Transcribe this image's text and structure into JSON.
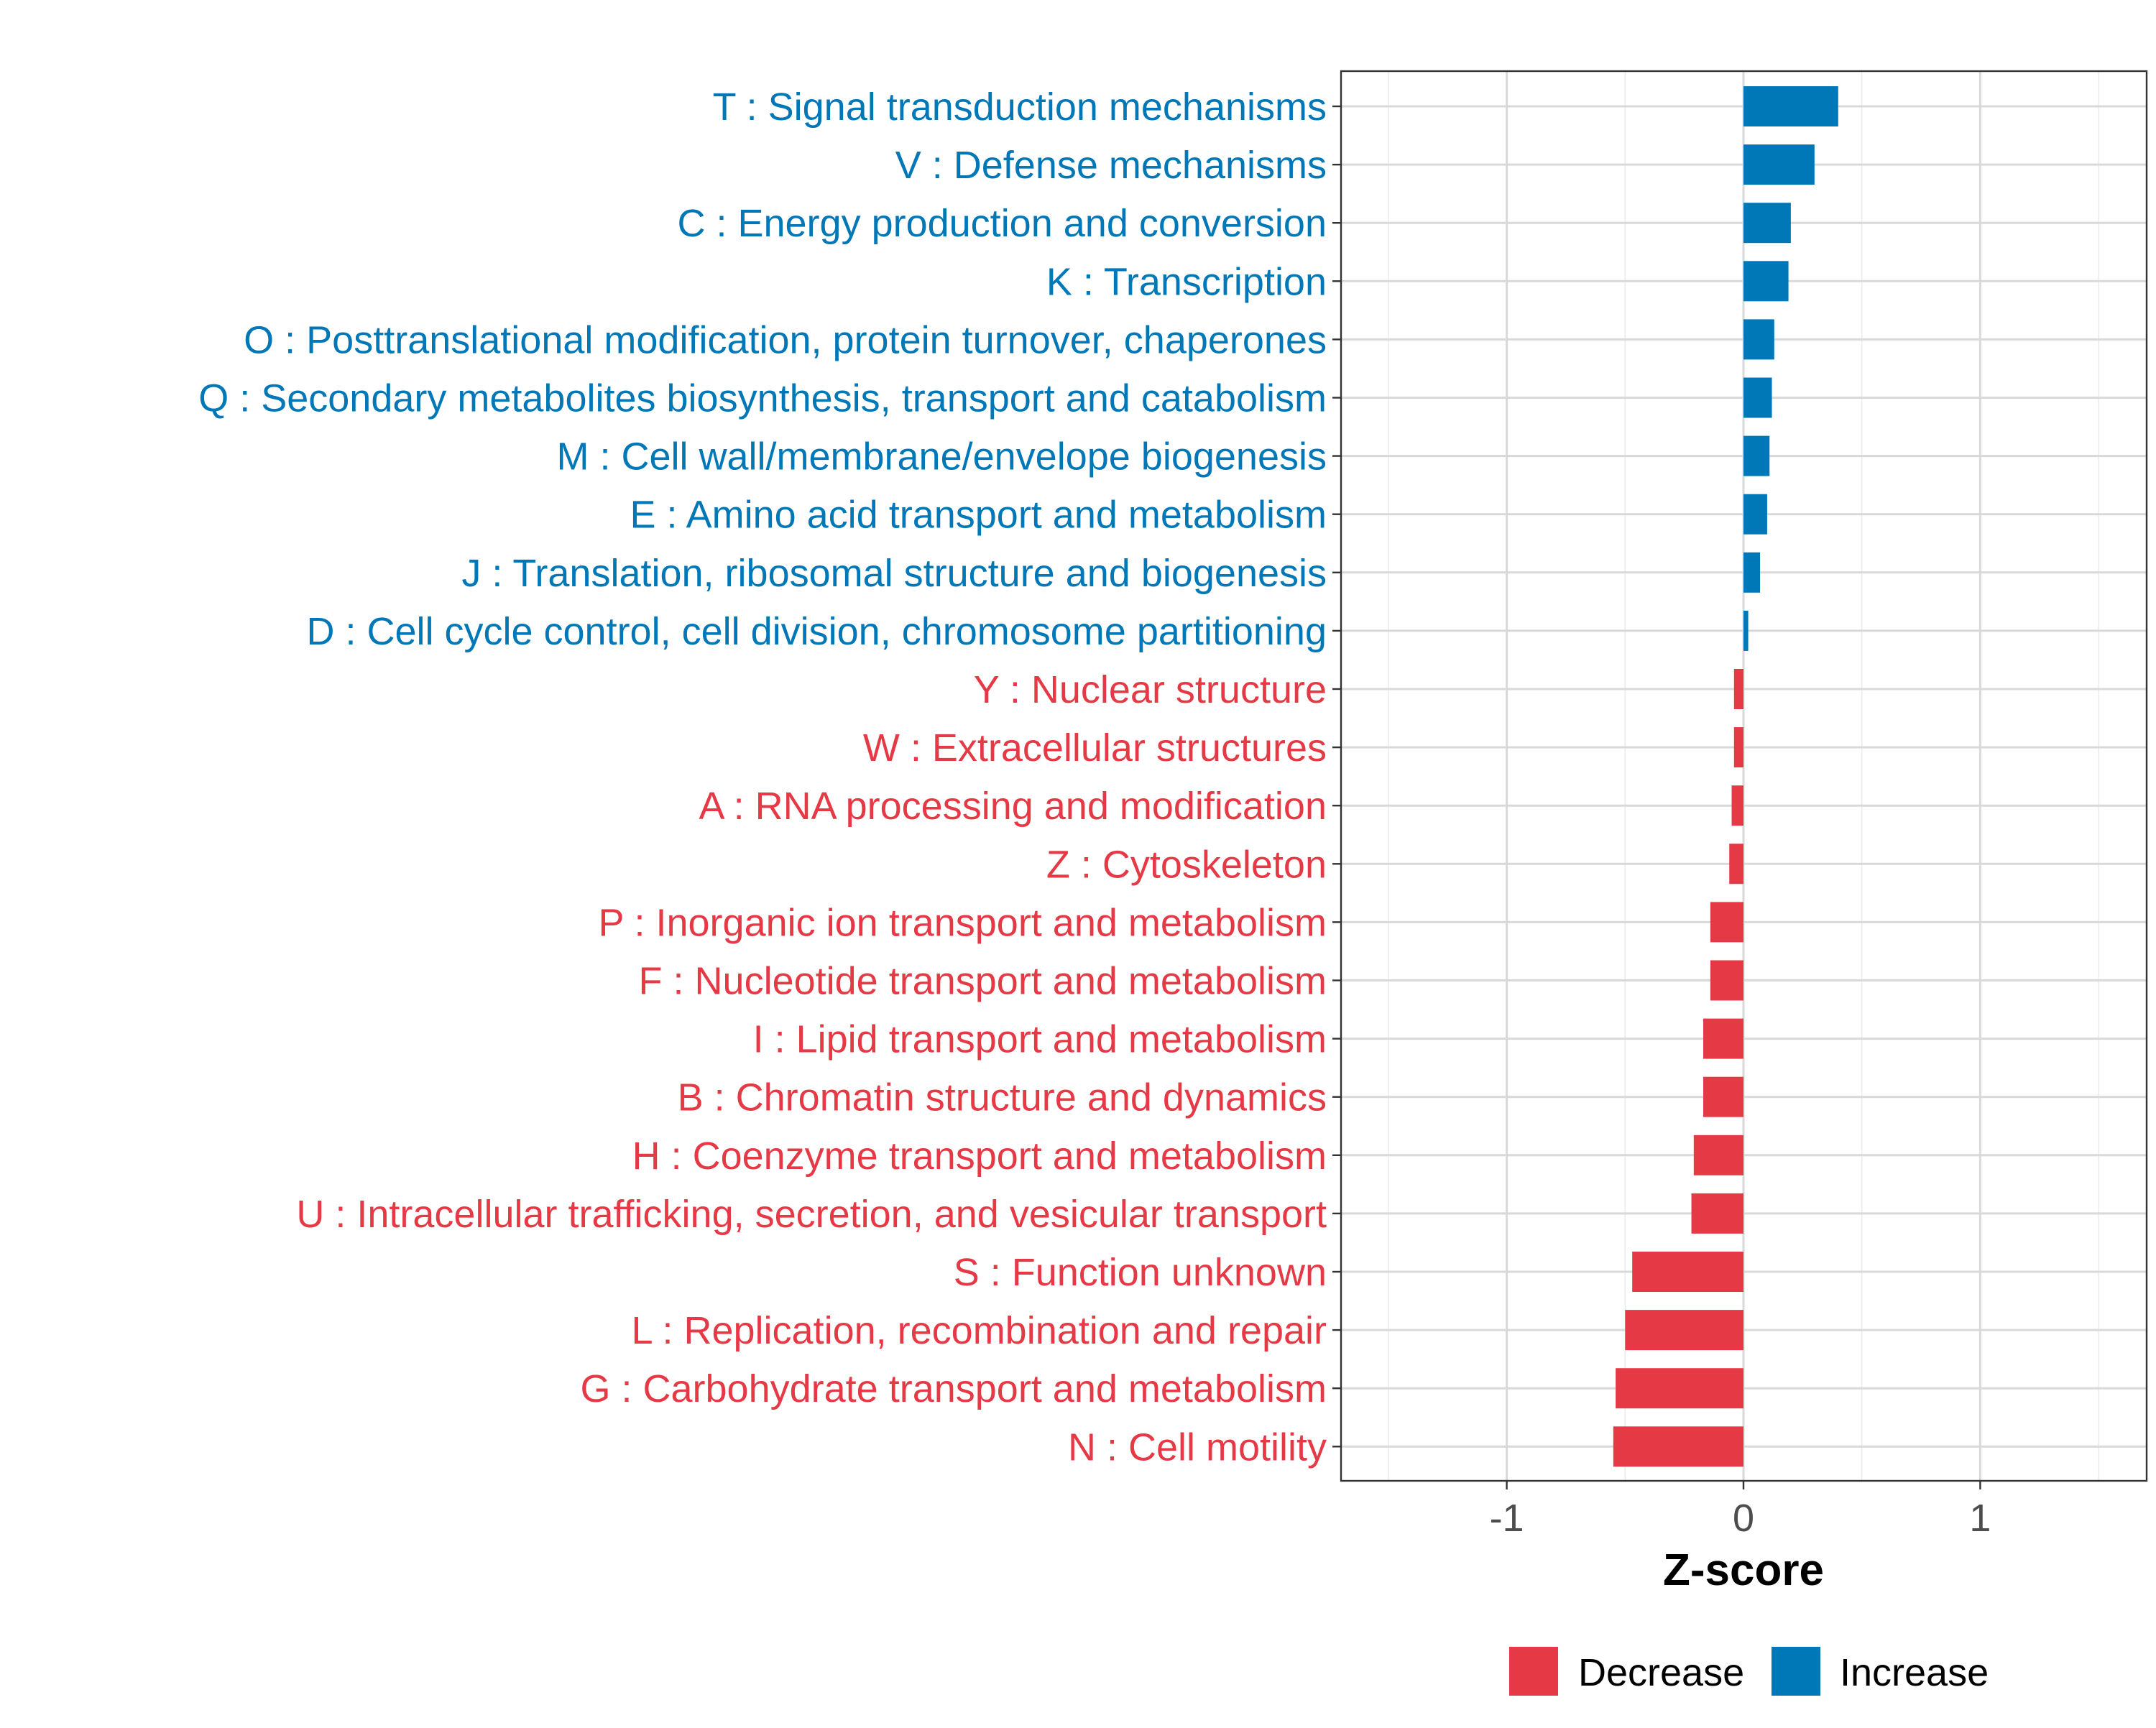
{
  "chart_data": {
    "type": "bar",
    "orientation": "horizontal",
    "title": "",
    "xlabel": "Z-score",
    "ylabel": "",
    "xlim": [
      -1.7,
      1.7
    ],
    "xticks": [
      -1,
      0,
      1
    ],
    "xtick_labels": [
      "-1",
      "0",
      "1"
    ],
    "grid": true,
    "legend_position": "bottom",
    "categories": [
      "T : Signal transduction mechanisms",
      "V : Defense mechanisms",
      "C : Energy production and conversion",
      "K : Transcription",
      "O : Posttranslational modification, protein turnover, chaperones",
      "Q : Secondary metabolites biosynthesis, transport and catabolism",
      "M : Cell wall/membrane/envelope biogenesis",
      "E : Amino acid transport and metabolism",
      "J : Translation, ribosomal structure and biogenesis",
      "D : Cell cycle control, cell division, chromosome partitioning",
      "Y : Nuclear structure",
      "W : Extracellular structures",
      "A : RNA processing and modification",
      "Z : Cytoskeleton",
      "P : Inorganic ion transport and metabolism",
      "F : Nucleotide transport and metabolism",
      "I : Lipid transport and metabolism",
      "B : Chromatin structure and dynamics",
      "H : Coenzyme transport and metabolism",
      "U : Intracellular trafficking, secretion, and vesicular transport",
      "S : Function unknown",
      "L : Replication, recombination and repair",
      "G : Carbohydrate transport and metabolism",
      "N : Cell motility"
    ],
    "values": [
      0.4,
      0.3,
      0.2,
      0.19,
      0.13,
      0.12,
      0.11,
      0.1,
      0.07,
      0.02,
      -0.04,
      -0.04,
      -0.05,
      -0.06,
      -0.14,
      -0.14,
      -0.17,
      -0.17,
      -0.21,
      -0.22,
      -0.47,
      -0.5,
      -0.54,
      -0.55
    ],
    "groups": [
      "Increase",
      "Increase",
      "Increase",
      "Increase",
      "Increase",
      "Increase",
      "Increase",
      "Increase",
      "Increase",
      "Increase",
      "Decrease",
      "Decrease",
      "Decrease",
      "Decrease",
      "Decrease",
      "Decrease",
      "Decrease",
      "Decrease",
      "Decrease",
      "Decrease",
      "Decrease",
      "Decrease",
      "Decrease",
      "Decrease"
    ],
    "legend": [
      {
        "name": "Decrease",
        "color": "#E63946"
      },
      {
        "name": "Increase",
        "color": "#0077B6"
      }
    ]
  }
}
